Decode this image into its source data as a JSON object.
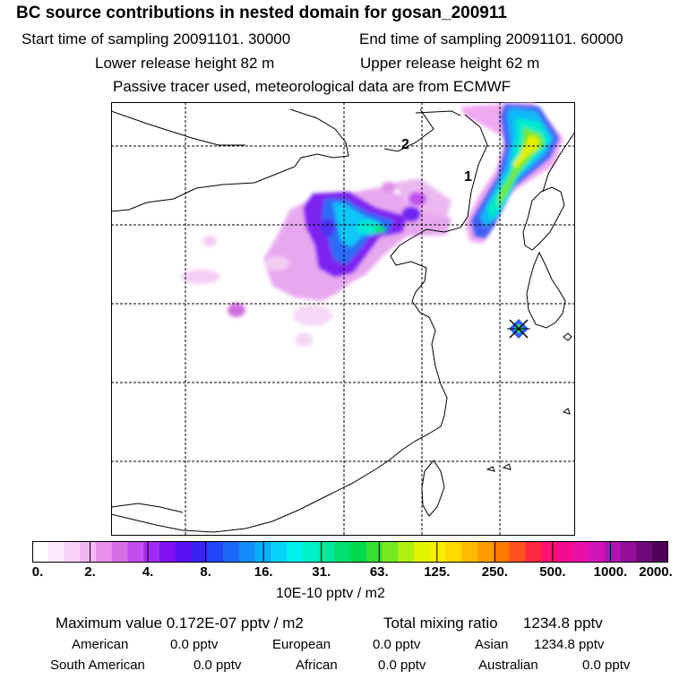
{
  "header": {
    "title": "BC  source contributions in nested domain for gosan_200911",
    "start": "Start time of sampling 20091101. 30000",
    "end": "End time of sampling 20091101. 60000",
    "lower": "Lower release height   82 m",
    "upper": "Upper release height   62 m",
    "tracer": "Passive tracer used, meteorological data are from ECMWF"
  },
  "map": {
    "labels": {
      "one": "1",
      "two": "2"
    }
  },
  "colorbar": {
    "ticks": [
      "0.",
      "2.",
      "4.",
      "8.",
      "16.",
      "31.",
      "63.",
      "125.",
      "250.",
      "500.",
      "1000.",
      "2000."
    ],
    "units": "10E-10 pptv / m2",
    "colors": [
      "#ffffff",
      "#fde8fd",
      "#f9d0f9",
      "#f3b6f3",
      "#e98fe9",
      "#d86ee4",
      "#c24ef0",
      "#a32cf4",
      "#7f10f0",
      "#5a0ff0",
      "#3a22f0",
      "#2244f5",
      "#1a68f8",
      "#138cfa",
      "#0aaefa",
      "#06d2fa",
      "#00f0f0",
      "#00f0c8",
      "#00e89a",
      "#00e070",
      "#00d84a",
      "#34e034",
      "#74ea20",
      "#b0f010",
      "#e0f400",
      "#f8f000",
      "#ffd800",
      "#ffbc00",
      "#ff9c00",
      "#ff7800",
      "#ff5020",
      "#ff2840",
      "#ff1070",
      "#f40a90",
      "#e810a8",
      "#d014b8",
      "#b014b0",
      "#900e98",
      "#6e0878",
      "#500058"
    ]
  },
  "stats": {
    "max": "Maximum value  0.172E-07 pptv / m2",
    "total_label": "Total mixing ratio",
    "total_value": "1234.8 pptv",
    "american_label": "American",
    "american_value": "0.0 pptv",
    "european_label": "European",
    "european_value": "0.0 pptv",
    "asian_label": "Asian",
    "asian_value": "1234.8 pptv",
    "southamerican_label": "South American",
    "southamerican_value": "0.0 pptv",
    "african_label": "African",
    "african_value": "0.0 pptv",
    "australian_label": "Australian",
    "australian_value": "0.0 pptv"
  }
}
